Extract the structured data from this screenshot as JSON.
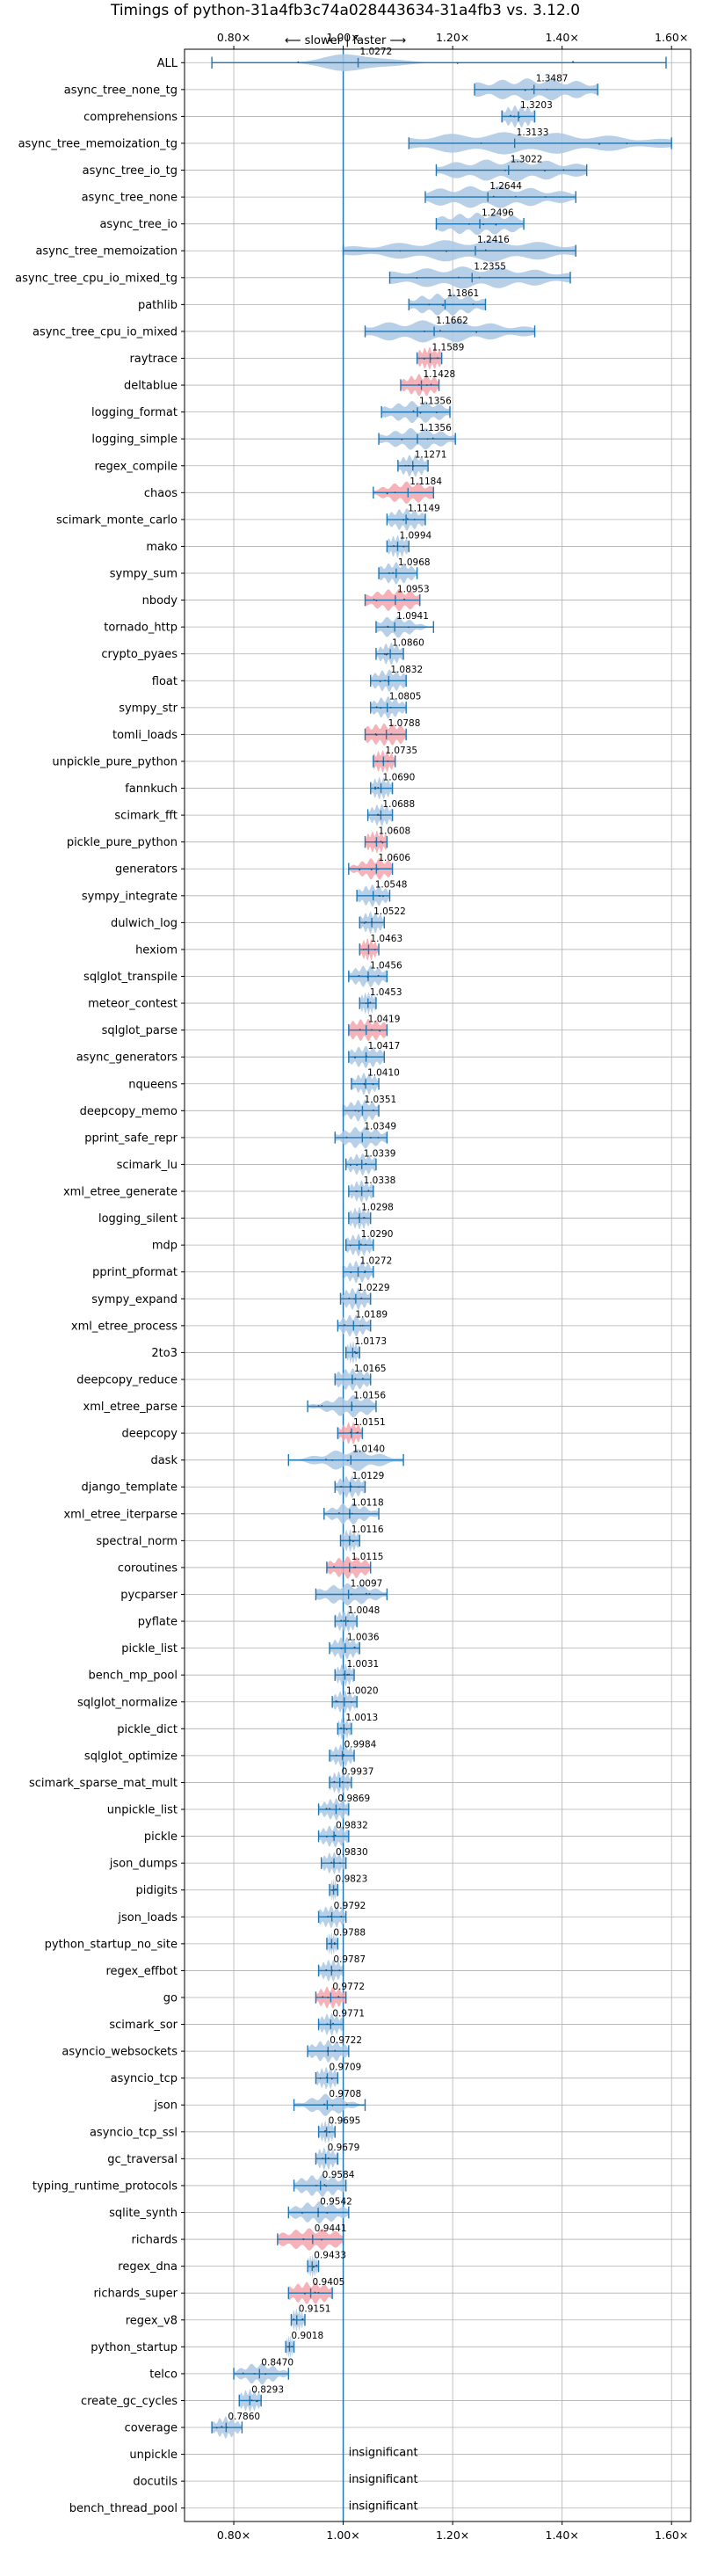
{
  "chart_data": {
    "type": "violin",
    "title": "Timings of python-31a4fb3c74a028443634-31a4fb3 vs. 3.12.0",
    "annotation": "⟵ slower | faster ⟶",
    "x_ticks": [
      "0.80×",
      "1.00×",
      "1.20×",
      "1.40×",
      "1.60×"
    ],
    "x_tick_values": [
      0.8,
      1.0,
      1.2,
      1.4,
      1.6
    ],
    "xlim": [
      0.71,
      1.635
    ],
    "reference_value": 1.0,
    "grid": true,
    "colors": {
      "default": "#aac8e4",
      "highlight": "#f3a5ac",
      "line": "#1f77b4"
    },
    "benchmarks": [
      {
        "name": "ALL",
        "label": "1.0272",
        "value": 1.0272,
        "min": 0.76,
        "max": 1.59,
        "spread": 0.05,
        "highlight": false
      },
      {
        "name": "async_tree_none_tg",
        "label": "1.3487",
        "value": 1.3487,
        "min": 1.24,
        "max": 1.465,
        "spread": 0.11,
        "highlight": false
      },
      {
        "name": "comprehensions",
        "label": "1.3203",
        "value": 1.3203,
        "min": 1.29,
        "max": 1.35,
        "spread": 0.03,
        "highlight": false
      },
      {
        "name": "async_tree_memoization_tg",
        "label": "1.3133",
        "value": 1.3133,
        "min": 1.12,
        "max": 1.6,
        "spread": 0.2,
        "highlight": false
      },
      {
        "name": "async_tree_io_tg",
        "label": "1.3022",
        "value": 1.3022,
        "min": 1.17,
        "max": 1.445,
        "spread": 0.12,
        "highlight": false
      },
      {
        "name": "async_tree_none",
        "label": "1.2644",
        "value": 1.2644,
        "min": 1.15,
        "max": 1.425,
        "spread": 0.12,
        "highlight": false
      },
      {
        "name": "async_tree_io",
        "label": "1.2496",
        "value": 1.2496,
        "min": 1.17,
        "max": 1.33,
        "spread": 0.08,
        "highlight": false
      },
      {
        "name": "async_tree_memoization",
        "label": "1.2416",
        "value": 1.2416,
        "min": 1.0,
        "max": 1.425,
        "spread": 0.17,
        "highlight": false
      },
      {
        "name": "async_tree_cpu_io_mixed_tg",
        "label": "1.2355",
        "value": 1.2355,
        "min": 1.085,
        "max": 1.415,
        "spread": 0.14,
        "highlight": false
      },
      {
        "name": "pathlib",
        "label": "1.1861",
        "value": 1.1861,
        "min": 1.12,
        "max": 1.26,
        "spread": 0.06,
        "highlight": false
      },
      {
        "name": "async_tree_cpu_io_mixed",
        "label": "1.1662",
        "value": 1.1662,
        "min": 1.04,
        "max": 1.35,
        "spread": 0.13,
        "highlight": false
      },
      {
        "name": "raytrace",
        "label": "1.1589",
        "value": 1.1589,
        "min": 1.135,
        "max": 1.18,
        "spread": 0.025,
        "highlight": true
      },
      {
        "name": "deltablue",
        "label": "1.1428",
        "value": 1.1428,
        "min": 1.105,
        "max": 1.175,
        "spread": 0.03,
        "highlight": true
      },
      {
        "name": "logging_format",
        "label": "1.1356",
        "value": 1.1356,
        "min": 1.07,
        "max": 1.195,
        "spread": 0.05,
        "highlight": false
      },
      {
        "name": "logging_simple",
        "label": "1.1356",
        "value": 1.1356,
        "min": 1.065,
        "max": 1.205,
        "spread": 0.05,
        "highlight": false
      },
      {
        "name": "regex_compile",
        "label": "1.1271",
        "value": 1.1271,
        "min": 1.1,
        "max": 1.155,
        "spread": 0.025,
        "highlight": false
      },
      {
        "name": "chaos",
        "label": "1.1184",
        "value": 1.1184,
        "min": 1.055,
        "max": 1.165,
        "spread": 0.04,
        "highlight": true
      },
      {
        "name": "scimark_monte_carlo",
        "label": "1.1149",
        "value": 1.1149,
        "min": 1.08,
        "max": 1.15,
        "spread": 0.03,
        "highlight": false
      },
      {
        "name": "mako",
        "label": "1.0994",
        "value": 1.0994,
        "min": 1.08,
        "max": 1.12,
        "spread": 0.02,
        "highlight": false
      },
      {
        "name": "sympy_sum",
        "label": "1.0968",
        "value": 1.0968,
        "min": 1.065,
        "max": 1.135,
        "spread": 0.03,
        "highlight": false
      },
      {
        "name": "nbody",
        "label": "1.0953",
        "value": 1.0953,
        "min": 1.04,
        "max": 1.14,
        "spread": 0.045,
        "highlight": true
      },
      {
        "name": "tornado_http",
        "label": "1.0941",
        "value": 1.0941,
        "min": 1.06,
        "max": 1.165,
        "spread": 0.03,
        "highlight": false
      },
      {
        "name": "crypto_pyaes",
        "label": "1.0860",
        "value": 1.086,
        "min": 1.06,
        "max": 1.11,
        "spread": 0.02,
        "highlight": false
      },
      {
        "name": "float",
        "label": "1.0832",
        "value": 1.0832,
        "min": 1.05,
        "max": 1.115,
        "spread": 0.03,
        "highlight": false
      },
      {
        "name": "sympy_str",
        "label": "1.0805",
        "value": 1.0805,
        "min": 1.05,
        "max": 1.115,
        "spread": 0.025,
        "highlight": false
      },
      {
        "name": "tomli_loads",
        "label": "1.0788",
        "value": 1.0788,
        "min": 1.04,
        "max": 1.115,
        "spread": 0.045,
        "highlight": true
      },
      {
        "name": "unpickle_pure_python",
        "label": "1.0735",
        "value": 1.0735,
        "min": 1.055,
        "max": 1.095,
        "spread": 0.02,
        "highlight": true
      },
      {
        "name": "fannkuch",
        "label": "1.0690",
        "value": 1.069,
        "min": 1.05,
        "max": 1.09,
        "spread": 0.02,
        "highlight": false
      },
      {
        "name": "scimark_fft",
        "label": "1.0688",
        "value": 1.0688,
        "min": 1.045,
        "max": 1.09,
        "spread": 0.02,
        "highlight": false
      },
      {
        "name": "pickle_pure_python",
        "label": "1.0608",
        "value": 1.0608,
        "min": 1.04,
        "max": 1.08,
        "spread": 0.02,
        "highlight": true
      },
      {
        "name": "generators",
        "label": "1.0606",
        "value": 1.0606,
        "min": 1.01,
        "max": 1.09,
        "spread": 0.03,
        "highlight": true
      },
      {
        "name": "sympy_integrate",
        "label": "1.0548",
        "value": 1.0548,
        "min": 1.025,
        "max": 1.085,
        "spread": 0.025,
        "highlight": false
      },
      {
        "name": "dulwich_log",
        "label": "1.0522",
        "value": 1.0522,
        "min": 1.03,
        "max": 1.075,
        "spread": 0.02,
        "highlight": false
      },
      {
        "name": "hexiom",
        "label": "1.0463",
        "value": 1.0463,
        "min": 1.03,
        "max": 1.065,
        "spread": 0.015,
        "highlight": true
      },
      {
        "name": "sqlglot_transpile",
        "label": "1.0456",
        "value": 1.0456,
        "min": 1.01,
        "max": 1.08,
        "spread": 0.03,
        "highlight": false
      },
      {
        "name": "meteor_contest",
        "label": "1.0453",
        "value": 1.0453,
        "min": 1.03,
        "max": 1.06,
        "spread": 0.015,
        "highlight": false
      },
      {
        "name": "sqlglot_parse",
        "label": "1.0419",
        "value": 1.0419,
        "min": 1.01,
        "max": 1.08,
        "spread": 0.04,
        "highlight": true
      },
      {
        "name": "async_generators",
        "label": "1.0417",
        "value": 1.0417,
        "min": 1.01,
        "max": 1.075,
        "spread": 0.03,
        "highlight": false
      },
      {
        "name": "nqueens",
        "label": "1.0410",
        "value": 1.041,
        "min": 1.015,
        "max": 1.065,
        "spread": 0.02,
        "highlight": false
      },
      {
        "name": "deepcopy_memo",
        "label": "1.0351",
        "value": 1.0351,
        "min": 1.0,
        "max": 1.065,
        "spread": 0.03,
        "highlight": false
      },
      {
        "name": "pprint_safe_repr",
        "label": "1.0349",
        "value": 1.0349,
        "min": 0.985,
        "max": 1.08,
        "spread": 0.035,
        "highlight": false
      },
      {
        "name": "scimark_lu",
        "label": "1.0339",
        "value": 1.0339,
        "min": 1.005,
        "max": 1.06,
        "spread": 0.025,
        "highlight": false
      },
      {
        "name": "xml_etree_generate",
        "label": "1.0338",
        "value": 1.0338,
        "min": 1.01,
        "max": 1.055,
        "spread": 0.02,
        "highlight": false
      },
      {
        "name": "logging_silent",
        "label": "1.0298",
        "value": 1.0298,
        "min": 1.01,
        "max": 1.05,
        "spread": 0.02,
        "highlight": false
      },
      {
        "name": "mdp",
        "label": "1.0290",
        "value": 1.029,
        "min": 1.005,
        "max": 1.055,
        "spread": 0.025,
        "highlight": false
      },
      {
        "name": "pprint_pformat",
        "label": "1.0272",
        "value": 1.0272,
        "min": 1.0,
        "max": 1.055,
        "spread": 0.025,
        "highlight": false
      },
      {
        "name": "sympy_expand",
        "label": "1.0229",
        "value": 1.0229,
        "min": 0.995,
        "max": 1.05,
        "spread": 0.025,
        "highlight": false
      },
      {
        "name": "xml_etree_process",
        "label": "1.0189",
        "value": 1.0189,
        "min": 0.99,
        "max": 1.05,
        "spread": 0.025,
        "highlight": false
      },
      {
        "name": "2to3",
        "label": "1.0173",
        "value": 1.0173,
        "min": 1.005,
        "max": 1.03,
        "spread": 0.012,
        "highlight": false
      },
      {
        "name": "deepcopy_reduce",
        "label": "1.0165",
        "value": 1.0165,
        "min": 0.985,
        "max": 1.05,
        "spread": 0.03,
        "highlight": false
      },
      {
        "name": "xml_etree_parse",
        "label": "1.0156",
        "value": 1.0156,
        "min": 0.935,
        "max": 1.06,
        "spread": 0.04,
        "highlight": false
      },
      {
        "name": "deepcopy",
        "label": "1.0151",
        "value": 1.0151,
        "min": 0.99,
        "max": 1.035,
        "spread": 0.02,
        "highlight": true
      },
      {
        "name": "dask",
        "label": "1.0140",
        "value": 1.014,
        "min": 0.9,
        "max": 1.11,
        "spread": 0.05,
        "highlight": false
      },
      {
        "name": "django_template",
        "label": "1.0129",
        "value": 1.0129,
        "min": 0.985,
        "max": 1.04,
        "spread": 0.025,
        "highlight": false
      },
      {
        "name": "xml_etree_iterparse",
        "label": "1.0118",
        "value": 1.0118,
        "min": 0.965,
        "max": 1.065,
        "spread": 0.03,
        "highlight": false
      },
      {
        "name": "spectral_norm",
        "label": "1.0116",
        "value": 1.0116,
        "min": 0.995,
        "max": 1.03,
        "spread": 0.017,
        "highlight": false
      },
      {
        "name": "coroutines",
        "label": "1.0115",
        "value": 1.0115,
        "min": 0.97,
        "max": 1.05,
        "spread": 0.035,
        "highlight": true
      },
      {
        "name": "pycparser",
        "label": "1.0097",
        "value": 1.0097,
        "min": 0.95,
        "max": 1.08,
        "spread": 0.045,
        "highlight": false
      },
      {
        "name": "pyflate",
        "label": "1.0048",
        "value": 1.0048,
        "min": 0.985,
        "max": 1.025,
        "spread": 0.02,
        "highlight": false
      },
      {
        "name": "pickle_list",
        "label": "1.0036",
        "value": 1.0036,
        "min": 0.975,
        "max": 1.03,
        "spread": 0.025,
        "highlight": false
      },
      {
        "name": "bench_mp_pool",
        "label": "1.0031",
        "value": 1.0031,
        "min": 0.985,
        "max": 1.02,
        "spread": 0.017,
        "highlight": false
      },
      {
        "name": "sqlglot_normalize",
        "label": "1.0020",
        "value": 1.002,
        "min": 0.98,
        "max": 1.025,
        "spread": 0.02,
        "highlight": false
      },
      {
        "name": "pickle_dict",
        "label": "1.0013",
        "value": 1.0013,
        "min": 0.99,
        "max": 1.015,
        "spread": 0.012,
        "highlight": false
      },
      {
        "name": "sqlglot_optimize",
        "label": "0.9984",
        "value": 0.9984,
        "min": 0.975,
        "max": 1.02,
        "spread": 0.02,
        "highlight": false
      },
      {
        "name": "scimark_sparse_mat_mult",
        "label": "0.9937",
        "value": 0.9937,
        "min": 0.975,
        "max": 1.015,
        "spread": 0.02,
        "highlight": false
      },
      {
        "name": "unpickle_list",
        "label": "0.9869",
        "value": 0.9869,
        "min": 0.955,
        "max": 1.01,
        "spread": 0.025,
        "highlight": false
      },
      {
        "name": "pickle",
        "label": "0.9832",
        "value": 0.9832,
        "min": 0.955,
        "max": 1.01,
        "spread": 0.025,
        "highlight": false
      },
      {
        "name": "json_dumps",
        "label": "0.9830",
        "value": 0.983,
        "min": 0.96,
        "max": 1.005,
        "spread": 0.02,
        "highlight": false
      },
      {
        "name": "pidigits",
        "label": "0.9823",
        "value": 0.9823,
        "min": 0.975,
        "max": 0.99,
        "spread": 0.007,
        "highlight": false
      },
      {
        "name": "json_loads",
        "label": "0.9792",
        "value": 0.9792,
        "min": 0.955,
        "max": 1.005,
        "spread": 0.025,
        "highlight": false
      },
      {
        "name": "python_startup_no_site",
        "label": "0.9788",
        "value": 0.9788,
        "min": 0.97,
        "max": 0.99,
        "spread": 0.01,
        "highlight": false
      },
      {
        "name": "regex_effbot",
        "label": "0.9787",
        "value": 0.9787,
        "min": 0.955,
        "max": 1.0,
        "spread": 0.02,
        "highlight": false
      },
      {
        "name": "go",
        "label": "0.9772",
        "value": 0.9772,
        "min": 0.95,
        "max": 1.005,
        "spread": 0.025,
        "highlight": true
      },
      {
        "name": "scimark_sor",
        "label": "0.9771",
        "value": 0.9771,
        "min": 0.955,
        "max": 1.0,
        "spread": 0.02,
        "highlight": false
      },
      {
        "name": "asyncio_websockets",
        "label": "0.9722",
        "value": 0.9722,
        "min": 0.935,
        "max": 1.01,
        "spread": 0.03,
        "highlight": false
      },
      {
        "name": "asyncio_tcp",
        "label": "0.9709",
        "value": 0.9709,
        "min": 0.95,
        "max": 0.99,
        "spread": 0.02,
        "highlight": false
      },
      {
        "name": "json",
        "label": "0.9708",
        "value": 0.9708,
        "min": 0.91,
        "max": 1.04,
        "spread": 0.03,
        "highlight": false
      },
      {
        "name": "asyncio_tcp_ssl",
        "label": "0.9695",
        "value": 0.9695,
        "min": 0.955,
        "max": 0.985,
        "spread": 0.015,
        "highlight": false
      },
      {
        "name": "gc_traversal",
        "label": "0.9679",
        "value": 0.9679,
        "min": 0.95,
        "max": 0.99,
        "spread": 0.02,
        "highlight": false
      },
      {
        "name": "typing_runtime_protocols",
        "label": "0.9584",
        "value": 0.9584,
        "min": 0.91,
        "max": 1.005,
        "spread": 0.04,
        "highlight": false
      },
      {
        "name": "sqlite_synth",
        "label": "0.9542",
        "value": 0.9542,
        "min": 0.9,
        "max": 1.01,
        "spread": 0.04,
        "highlight": false
      },
      {
        "name": "richards",
        "label": "0.9441",
        "value": 0.9441,
        "min": 0.88,
        "max": 1.0,
        "spread": 0.055,
        "highlight": true
      },
      {
        "name": "regex_dna",
        "label": "0.9433",
        "value": 0.9433,
        "min": 0.935,
        "max": 0.955,
        "spread": 0.01,
        "highlight": false
      },
      {
        "name": "richards_super",
        "label": "0.9405",
        "value": 0.9405,
        "min": 0.9,
        "max": 0.98,
        "spread": 0.04,
        "highlight": true
      },
      {
        "name": "regex_v8",
        "label": "0.9151",
        "value": 0.9151,
        "min": 0.905,
        "max": 0.93,
        "spread": 0.012,
        "highlight": false
      },
      {
        "name": "python_startup",
        "label": "0.9018",
        "value": 0.9018,
        "min": 0.895,
        "max": 0.91,
        "spread": 0.007,
        "highlight": false
      },
      {
        "name": "telco",
        "label": "0.8470",
        "value": 0.847,
        "min": 0.8,
        "max": 0.9,
        "spread": 0.03,
        "highlight": false
      },
      {
        "name": "create_gc_cycles",
        "label": "0.8293",
        "value": 0.8293,
        "min": 0.81,
        "max": 0.85,
        "spread": 0.02,
        "highlight": false
      },
      {
        "name": "coverage",
        "label": "0.7860",
        "value": 0.786,
        "min": 0.76,
        "max": 0.815,
        "spread": 0.02,
        "highlight": false
      },
      {
        "name": "unpickle",
        "label": "insignificant",
        "value": null,
        "min": null,
        "max": null,
        "spread": 0,
        "highlight": false
      },
      {
        "name": "docutils",
        "label": "insignificant",
        "value": null,
        "min": null,
        "max": null,
        "spread": 0,
        "highlight": false
      },
      {
        "name": "bench_thread_pool",
        "label": "insignificant",
        "value": null,
        "min": null,
        "max": null,
        "spread": 0,
        "highlight": false
      }
    ]
  }
}
